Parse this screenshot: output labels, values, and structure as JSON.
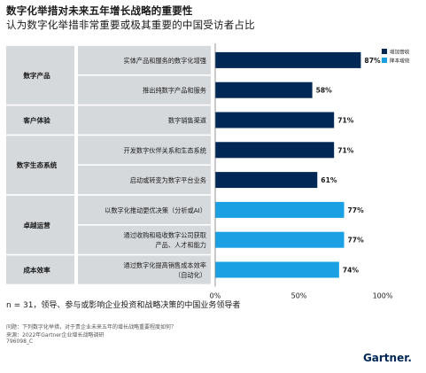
{
  "title": "数字化举措对未来五年增长战略的重要性",
  "subtitle": "认为数字化举措非常重要或极其重要的中国受访者占比",
  "chart_data": {
    "type": "bar",
    "orientation": "horizontal",
    "categories": [
      "实体产品和服务的数字化增强",
      "推出纯数字产品和服务",
      "数字销售渠道",
      "开发数字伙伴关系和生态系统",
      "启动或转变为数字平台业务",
      "以数字化推动更优决策（分析或AI）",
      "通过收购和吸收数字公司获取\n产品、人才和能力",
      "通过数字化提高销售成本效率\n（自动化）"
    ],
    "values": [
      87,
      58,
      71,
      71,
      61,
      77,
      77,
      74
    ],
    "value_labels": [
      "87%",
      "58%",
      "71%",
      "71%",
      "61%",
      "77%",
      "77%",
      "74%"
    ],
    "series_index": [
      0,
      0,
      0,
      0,
      0,
      1,
      1,
      1
    ],
    "series": [
      {
        "name": "增加营收",
        "color": "#002856"
      },
      {
        "name": "降本增效",
        "color": "#1ba0e3"
      }
    ],
    "groups": [
      {
        "label": "数字产品",
        "start": 0,
        "count": 2
      },
      {
        "label": "客户体验",
        "start": 2,
        "count": 1
      },
      {
        "label": "数字生态系统",
        "start": 3,
        "count": 2
      },
      {
        "label": "卓越运营",
        "start": 5,
        "count": 2
      },
      {
        "label": "成本效率",
        "start": 7,
        "count": 1
      }
    ],
    "xlim": [
      0,
      100
    ],
    "xticks": [
      "0%",
      "50%",
      "100%"
    ],
    "legend_position": "top-right"
  },
  "note": "n = 31，领导、参与或影响企业投资和战略决策的中国业务领导者",
  "footer": {
    "question": "问题：下列数字化举措，对于贵企业未来五年的增长战略重要程度如何？",
    "source": "来源：2022年Gartner企业增长战略调研",
    "id": "796098_C"
  },
  "logo": "Gartner."
}
